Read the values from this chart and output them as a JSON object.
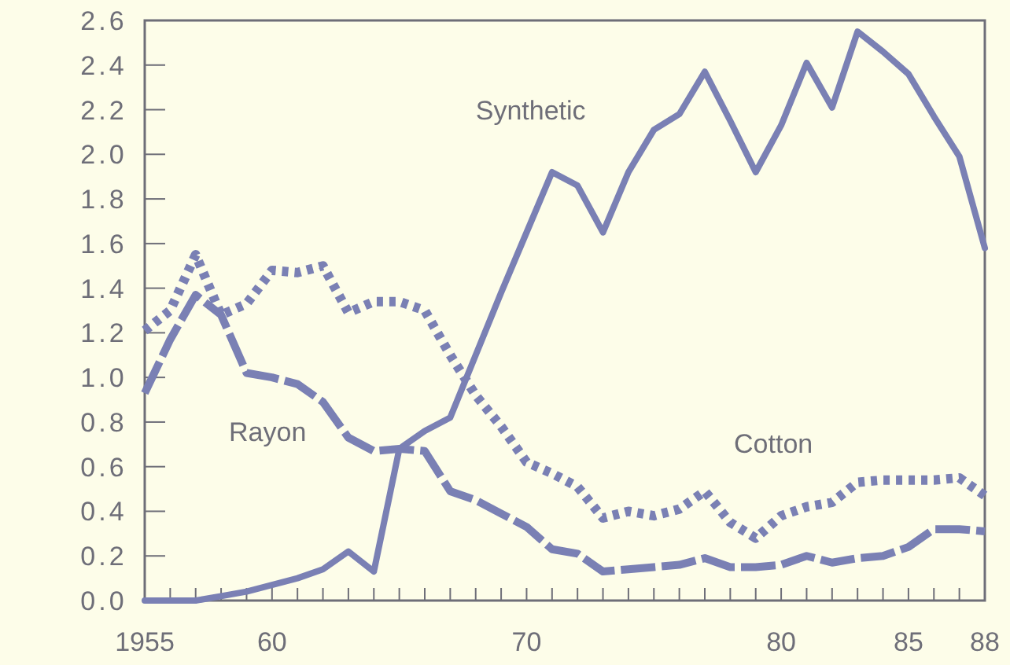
{
  "chart_data": {
    "type": "line",
    "x": [
      1955,
      1956,
      1957,
      1958,
      1959,
      1960,
      1961,
      1962,
      1963,
      1964,
      1965,
      1966,
      1967,
      1968,
      1969,
      1970,
      1971,
      1972,
      1973,
      1974,
      1975,
      1976,
      1977,
      1978,
      1979,
      1980,
      1981,
      1982,
      1983,
      1984,
      1985,
      1986,
      1987,
      1988
    ],
    "series": [
      {
        "name": "Synthetic",
        "color": "#7a80b4",
        "line_style": "solid",
        "values": [
          0,
          0,
          0,
          0.02,
          0.04,
          0.07,
          0.1,
          0.14,
          0.22,
          0.13,
          0.68,
          0.76,
          0.82,
          1.1,
          1.38,
          1.65,
          1.92,
          1.86,
          1.65,
          1.92,
          2.11,
          2.18,
          2.37,
          2.15,
          1.92,
          2.13,
          2.41,
          2.21,
          2.55,
          2.46,
          2.36,
          2.17,
          1.99,
          1.58
        ]
      },
      {
        "name": "Rayon",
        "color": "#7a80b4",
        "line_style": "dashed",
        "values": [
          0.93,
          1.17,
          1.37,
          1.28,
          1.02,
          1.0,
          0.97,
          0.89,
          0.73,
          0.67,
          0.68,
          0.67,
          0.49,
          0.45,
          0.39,
          0.33,
          0.23,
          0.21,
          0.13,
          0.14,
          0.15,
          0.16,
          0.19,
          0.15,
          0.15,
          0.16,
          0.2,
          0.17,
          0.19,
          0.2,
          0.24,
          0.32,
          0.32,
          0.31
        ]
      },
      {
        "name": "Cotton",
        "color": "#7a80b4",
        "line_style": "dotted",
        "values": [
          1.21,
          1.3,
          1.55,
          1.28,
          1.33,
          1.48,
          1.47,
          1.5,
          1.29,
          1.34,
          1.34,
          1.3,
          1.1,
          0.92,
          0.78,
          0.62,
          0.57,
          0.51,
          0.37,
          0.4,
          0.38,
          0.41,
          0.49,
          0.35,
          0.28,
          0.38,
          0.42,
          0.44,
          0.53,
          0.54,
          0.54,
          0.54,
          0.55,
          0.47
        ]
      }
    ],
    "xlim": [
      1955,
      1988
    ],
    "xticks": [
      {
        "value": 1955,
        "label": "1955"
      },
      {
        "value": 1956,
        "label": null
      },
      {
        "value": 1957,
        "label": null
      },
      {
        "value": 1958,
        "label": null
      },
      {
        "value": 1959,
        "label": null
      },
      {
        "value": 1960,
        "label": "60"
      },
      {
        "value": 1961,
        "label": null
      },
      {
        "value": 1962,
        "label": null
      },
      {
        "value": 1963,
        "label": null
      },
      {
        "value": 1964,
        "label": null
      },
      {
        "value": 1965,
        "label": null
      },
      {
        "value": 1966,
        "label": null
      },
      {
        "value": 1967,
        "label": null
      },
      {
        "value": 1968,
        "label": null
      },
      {
        "value": 1969,
        "label": null
      },
      {
        "value": 1970,
        "label": "70"
      },
      {
        "value": 1971,
        "label": null
      },
      {
        "value": 1972,
        "label": null
      },
      {
        "value": 1973,
        "label": null
      },
      {
        "value": 1974,
        "label": null
      },
      {
        "value": 1975,
        "label": null
      },
      {
        "value": 1976,
        "label": null
      },
      {
        "value": 1977,
        "label": null
      },
      {
        "value": 1978,
        "label": null
      },
      {
        "value": 1979,
        "label": null
      },
      {
        "value": 1980,
        "label": "80"
      },
      {
        "value": 1981,
        "label": null
      },
      {
        "value": 1982,
        "label": null
      },
      {
        "value": 1983,
        "label": null
      },
      {
        "value": 1984,
        "label": null
      },
      {
        "value": 1985,
        "label": "85"
      },
      {
        "value": 1986,
        "label": null
      },
      {
        "value": 1987,
        "label": null
      },
      {
        "value": 1988,
        "label": "88"
      }
    ],
    "ylim": [
      0,
      2.6
    ],
    "yticks": [
      {
        "value": 0,
        "label": "0.0"
      },
      0.2,
      0.4,
      0.6,
      0.8,
      {
        "value": 1,
        "label": "1.0"
      },
      1.2,
      1.4,
      1.6,
      1.8,
      {
        "value": 2,
        "label": "2.0"
      },
      2.2,
      2.4,
      2.6
    ],
    "grid": false,
    "marker": "none"
  }
}
